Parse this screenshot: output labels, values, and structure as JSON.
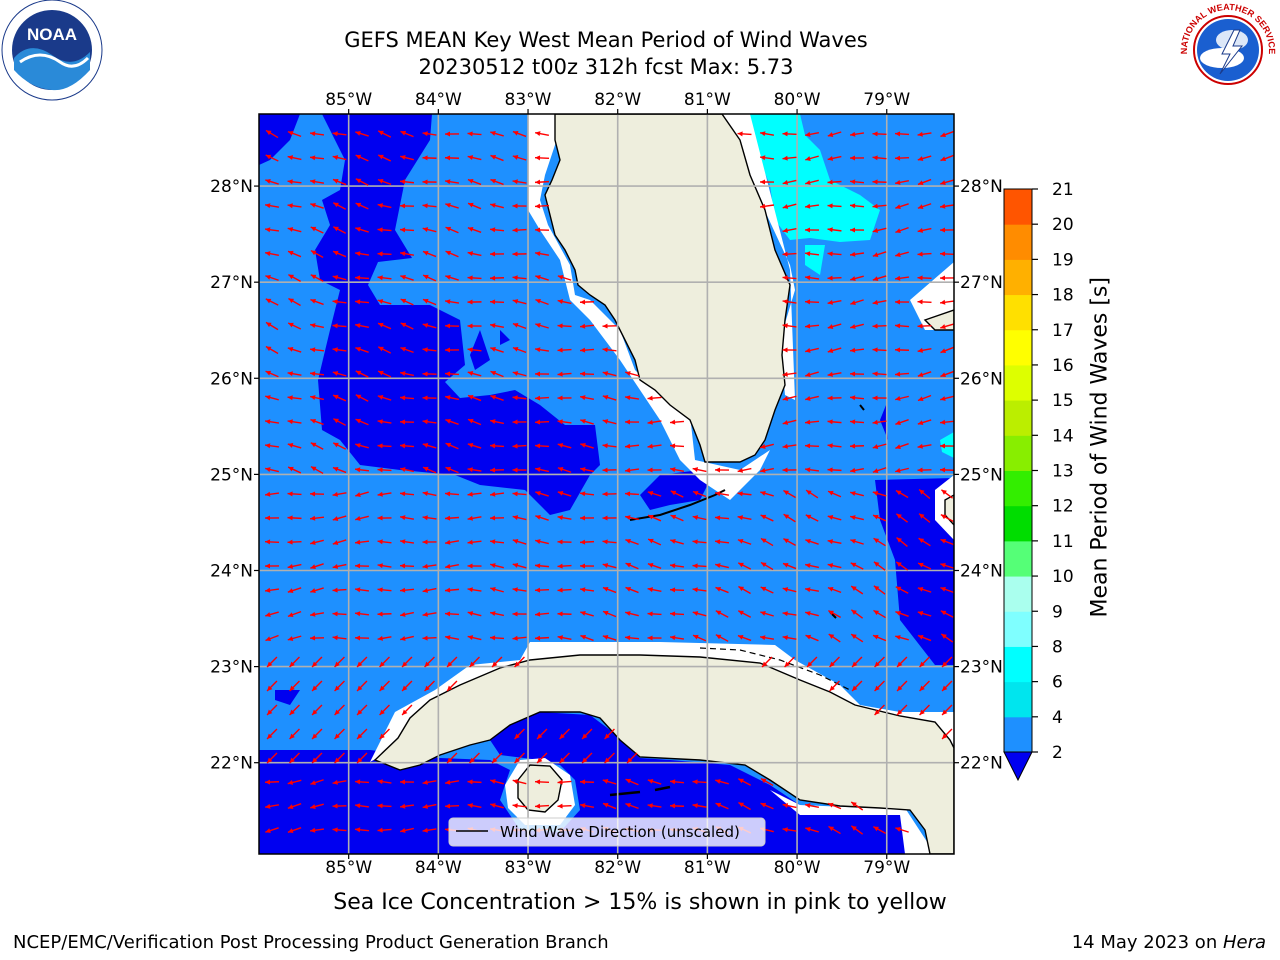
{
  "title": {
    "line1": "GEFS MEAN Key West Mean Period of Wind Waves",
    "line2": "20230512 t00z 312h fcst   Max: 5.73"
  },
  "map": {
    "lon_labels": [
      "85°W",
      "84°W",
      "83°W",
      "82°W",
      "81°W",
      "80°W",
      "79°W"
    ],
    "lat_labels": [
      "28°N",
      "27°N",
      "26°N",
      "25°N",
      "24°N",
      "23°N",
      "22°N"
    ],
    "lon_range": [
      -86.0,
      -78.25
    ],
    "lat_range": [
      21.05,
      28.75
    ],
    "colors": {
      "ocean_2_4": "#1E90FF",
      "ocean_lt2": "#0000F0",
      "ocean_4_6": "#00FFFF",
      "land": "#EEEEDD",
      "arrow": "#FF0000",
      "grid": "#B0B0B0"
    },
    "legend_label": "Wind Wave Direction (unscaled)"
  },
  "colorbar": {
    "label": "Mean Period of Wind Waves [s]",
    "ticks": [
      "2",
      "4",
      "6",
      "8",
      "9",
      "10",
      "11",
      "12",
      "13",
      "14",
      "15",
      "16",
      "17",
      "18",
      "19",
      "20",
      "21"
    ],
    "colors": [
      "#1E90FF",
      "#00E5EE",
      "#00FFFF",
      "#7FFFFF",
      "#AAFFEE",
      "#55FF77",
      "#00DD00",
      "#33EE00",
      "#88EE00",
      "#BBEE00",
      "#DDFF00",
      "#FFFF00",
      "#FFE000",
      "#FFB000",
      "#FF8C00",
      "#FF5500",
      "#FF2200",
      "#FF0000"
    ],
    "under_color": "#0000F0"
  },
  "notes": {
    "ice": "Sea Ice Concentration > 15% is shown in pink to yellow"
  },
  "footer": {
    "left": "NCEP/EMC/Verification Post Processing Product Generation Branch",
    "right_prefix": "14 May 2023 on ",
    "right_italic": "Hera"
  },
  "logos": {
    "noaa_text": "NOAA",
    "nws_text": "NATIONAL WEATHER SERVICE"
  }
}
